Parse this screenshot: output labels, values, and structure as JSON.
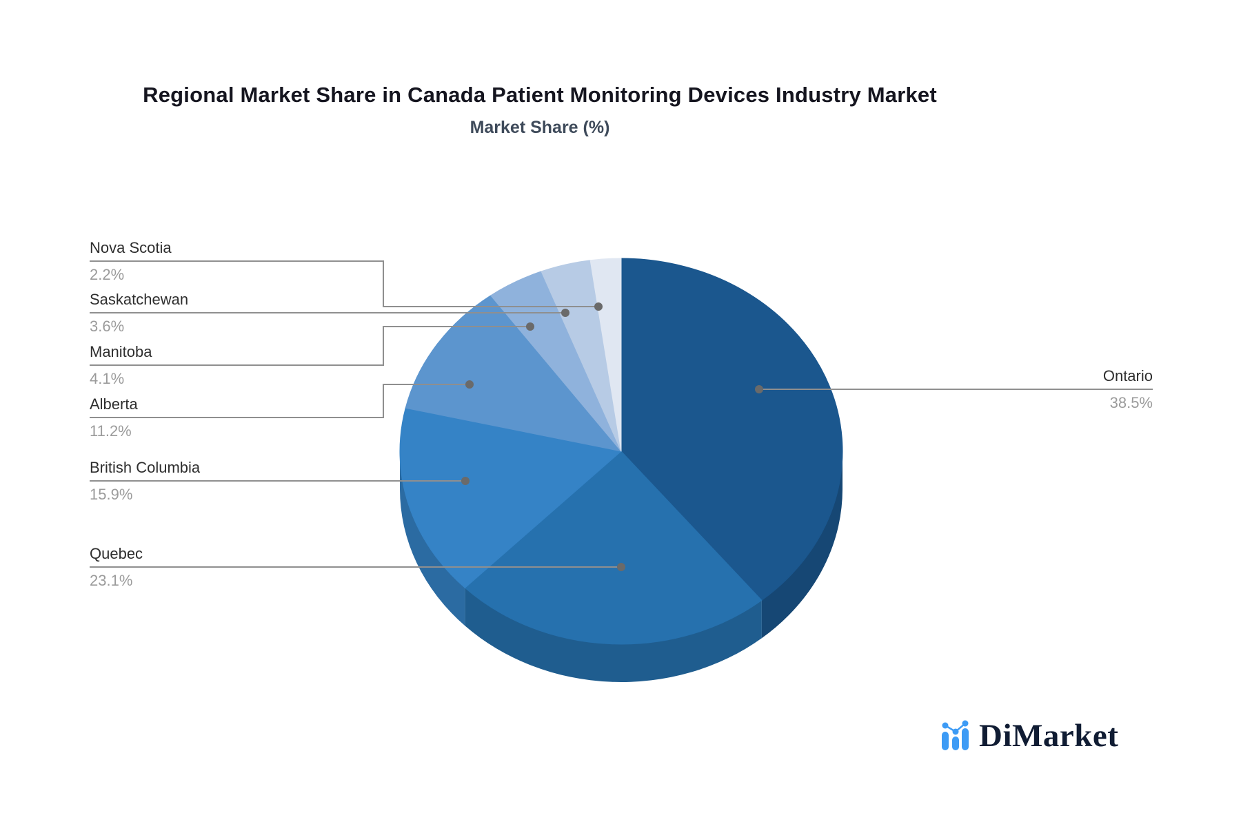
{
  "title": "Regional Market Share in Canada Patient Monitoring Devices Industry Market",
  "subtitle": "Market Share (%)",
  "chart_data": {
    "type": "pie",
    "style": "3d",
    "title": "Regional Market Share in Canada Patient Monitoring Devices Industry Market",
    "subtitle": "Market Share (%)",
    "unit": "%",
    "direction": "clockwise",
    "start_angle_deg": 0,
    "legend_position": "none",
    "slices": [
      {
        "label": "Ontario",
        "value": 38.5,
        "display": "38.5%",
        "color": "#1B578E"
      },
      {
        "label": "Quebec",
        "value": 23.1,
        "display": "23.1%",
        "color": "#2671AE"
      },
      {
        "label": "British Columbia",
        "value": 15.9,
        "display": "15.9%",
        "color": "#3583C6"
      },
      {
        "label": "Alberta",
        "value": 11.2,
        "display": "11.2%",
        "color": "#5C95CE"
      },
      {
        "label": "Manitoba",
        "value": 4.1,
        "display": "4.1%",
        "color": "#8FB2DC"
      },
      {
        "label": "Saskatchewan",
        "value": 3.6,
        "display": "3.6%",
        "color": "#B7CBE5"
      },
      {
        "label": "Nova Scotia",
        "value": 2.2,
        "display": "2.2%",
        "color": "#E0E7F2"
      }
    ]
  },
  "colors": {
    "leader_line": "#8F8F8F",
    "leader_dot": "#6A6A6A",
    "label_text": "#2E2E2E",
    "label_value": "#9B9B9B",
    "title": "#15151F",
    "subtitle": "#3E4A5A"
  },
  "logo": {
    "brand": "DiMarket",
    "icon": "bar-chart-logo-icon",
    "icon_color": "#3D9BF5",
    "text_color": "#101C33"
  }
}
